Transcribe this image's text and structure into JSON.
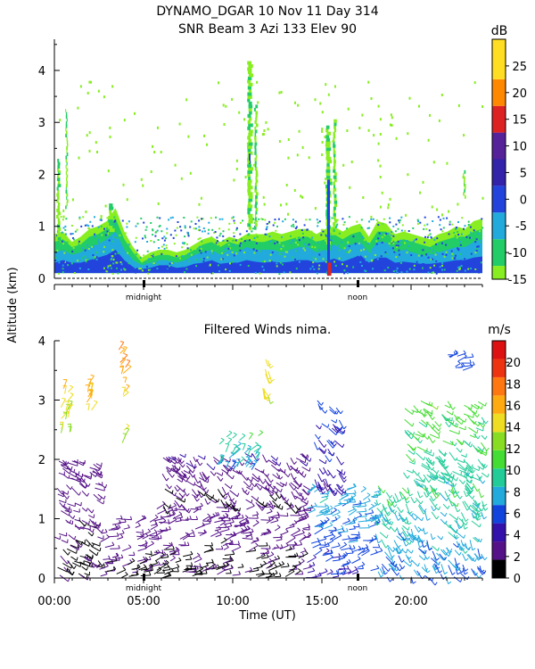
{
  "chart_data": [
    {
      "type": "heatmap",
      "title": "DYNAMO_DGAR   10 Nov 11  Day 314",
      "subtitle": "SNR Beam 3 Azi 133 Elev 90",
      "ylabel": "Altitude (km)",
      "ylim": [
        0,
        4.6
      ],
      "yticks": [
        "0",
        "1",
        "2",
        "3",
        "4"
      ],
      "xlim": [
        0,
        24
      ],
      "markers": [
        {
          "x": 5,
          "label": "midnight"
        },
        {
          "x": 17,
          "label": "noon"
        }
      ],
      "colorbar": {
        "unit": "dB",
        "ticks": [
          "-15",
          "-10",
          "-5",
          "0",
          "5",
          "10",
          "15",
          "20",
          "25"
        ],
        "ranges": [
          {
            "min": -15,
            "max": -12.5,
            "color": "#88ee22"
          },
          {
            "min": -12.5,
            "max": -7.5,
            "color": "#22cc66"
          },
          {
            "min": -7.5,
            "max": -2.5,
            "color": "#22aadd"
          },
          {
            "min": -2.5,
            "max": 2.5,
            "color": "#2244dd"
          },
          {
            "min": 2.5,
            "max": 7.5,
            "color": "#3322aa"
          },
          {
            "min": 7.5,
            "max": 12.5,
            "color": "#552299"
          },
          {
            "min": 12.5,
            "max": 17.5,
            "color": "#dd2222"
          },
          {
            "min": 17.5,
            "max": 22.5,
            "color": "#ff8800"
          },
          {
            "min": 22.5,
            "max": 30,
            "color": "#ffdd22"
          }
        ]
      },
      "layers": [
        {
          "name": "-15",
          "top": [
            0.85,
            0.9,
            0.7,
            0.8,
            0.95,
            1.0,
            1.1,
            1.35,
            0.9,
            0.6,
            0.4,
            0.5,
            0.55,
            0.55,
            0.5,
            0.55,
            0.65,
            0.75,
            0.8,
            0.7,
            0.8,
            0.75,
            0.85,
            0.85,
            0.85,
            0.9,
            0.85,
            0.9,
            0.95,
            0.95,
            0.85,
            0.95,
            1.0,
            0.9,
            1.0,
            1.05,
            0.8,
            1.1,
            1.05,
            0.85,
            0.9,
            0.85,
            0.8,
            0.75,
            0.85,
            0.9,
            1.0,
            0.95,
            1.1,
            1.15
          ]
        },
        {
          "name": "-10",
          "top": [
            0.7,
            0.75,
            0.6,
            0.65,
            0.8,
            0.85,
            0.95,
            1.15,
            0.75,
            0.5,
            0.3,
            0.4,
            0.45,
            0.45,
            0.4,
            0.45,
            0.55,
            0.65,
            0.7,
            0.6,
            0.7,
            0.65,
            0.75,
            0.7,
            0.7,
            0.75,
            0.7,
            0.75,
            0.8,
            0.8,
            0.7,
            0.75,
            0.85,
            0.75,
            0.85,
            0.9,
            0.65,
            0.9,
            0.9,
            0.7,
            0.75,
            0.7,
            0.65,
            0.6,
            0.7,
            0.75,
            0.8,
            0.8,
            0.9,
            0.95
          ]
        },
        {
          "name": "-5",
          "top": [
            0.5,
            0.55,
            0.45,
            0.5,
            0.6,
            0.65,
            0.75,
            0.9,
            0.55,
            0.35,
            0.25,
            0.3,
            0.35,
            0.35,
            0.3,
            0.35,
            0.45,
            0.5,
            0.55,
            0.45,
            0.55,
            0.5,
            0.6,
            0.55,
            0.55,
            0.55,
            0.5,
            0.55,
            0.6,
            0.6,
            0.5,
            0.55,
            0.65,
            0.55,
            0.65,
            0.7,
            0.5,
            0.7,
            0.7,
            0.5,
            0.55,
            0.5,
            0.45,
            0.45,
            0.5,
            0.55,
            0.6,
            0.6,
            0.7,
            0.75
          ]
        },
        {
          "name": "0",
          "top": [
            0.3,
            0.35,
            0.3,
            0.3,
            0.35,
            0.4,
            0.45,
            0.55,
            0.35,
            0.22,
            0.18,
            0.2,
            0.25,
            0.25,
            0.2,
            0.22,
            0.28,
            0.3,
            0.35,
            0.28,
            0.3,
            0.3,
            0.35,
            0.32,
            0.3,
            0.32,
            0.3,
            0.32,
            0.35,
            0.35,
            0.3,
            0.32,
            0.38,
            0.32,
            0.38,
            0.45,
            0.3,
            0.4,
            0.4,
            0.3,
            0.32,
            0.3,
            0.28,
            0.28,
            0.3,
            0.32,
            0.35,
            0.35,
            0.4,
            0.42
          ]
        }
      ],
      "columns": [
        {
          "x0": 0.1,
          "x1": 0.3,
          "y0": 0.8,
          "y1": 2.35
        },
        {
          "x0": 0.6,
          "x1": 0.7,
          "y0": 1.4,
          "y1": 3.3
        },
        {
          "x0": 3.0,
          "x1": 3.3,
          "y0": 0.9,
          "y1": 1.5
        },
        {
          "x0": 10.8,
          "x1": 11.1,
          "y0": 1.0,
          "y1": 4.2
        },
        {
          "x0": 11.2,
          "x1": 11.35,
          "y0": 1.0,
          "y1": 3.4
        },
        {
          "x0": 15.2,
          "x1": 15.5,
          "y0": 0.6,
          "y1": 3.0
        },
        {
          "x0": 15.6,
          "x1": 15.8,
          "y0": 0.9,
          "y1": 3.1
        },
        {
          "x0": 22.9,
          "x1": 23.0,
          "y0": 1.6,
          "y1": 2.1
        }
      ],
      "strong_columns": [
        {
          "x0": 15.3,
          "x1": 15.45,
          "y0": 0.05,
          "y1": 1.9
        },
        {
          "x0": 10.9,
          "x1": 11.0,
          "y0": 2.2,
          "y1": 2.4
        }
      ]
    },
    {
      "type": "scatter",
      "title": "Filtered Winds nima.",
      "xlabel": "Time (UT)",
      "ylabel": "Altitude (km)",
      "xlim": [
        0,
        24
      ],
      "ylim": [
        0,
        4.0
      ],
      "xticks": [
        {
          "v": 0,
          "label": "00:00"
        },
        {
          "v": 5,
          "label": "05:00"
        },
        {
          "v": 10,
          "label": "10:00"
        },
        {
          "v": 15,
          "label": "15:00"
        },
        {
          "v": 20,
          "label": "20:00"
        }
      ],
      "yticks": [
        "0",
        "1",
        "2",
        "3",
        "4"
      ],
      "markers": [
        {
          "x": 5,
          "label": "midnight"
        },
        {
          "x": 17,
          "label": "noon"
        }
      ],
      "colorbar": {
        "unit": "m/s",
        "ticks": [
          "0",
          "2",
          "4",
          "6",
          "8",
          "10",
          "12",
          "14",
          "16",
          "18",
          "20"
        ],
        "colors": [
          "#000000",
          "#551188",
          "#3311aa",
          "#1144dd",
          "#22aadd",
          "#22cc99",
          "#44dd33",
          "#88dd22",
          "#eedd22",
          "#ffaa11",
          "#ff7711",
          "#ee3311",
          "#dd1111"
        ]
      },
      "regions": [
        {
          "x0": 0.0,
          "x1": 2.5,
          "y0": 0.0,
          "y1": 2.0,
          "v0": 1,
          "v1": 3,
          "dir": -0.6
        },
        {
          "x0": 0.2,
          "x1": 1.0,
          "y0": 2.4,
          "y1": 3.3,
          "v0": 11,
          "v1": 17,
          "dir": 1.1
        },
        {
          "x0": 1.8,
          "x1": 2.1,
          "y0": 2.8,
          "y1": 3.3,
          "v0": 13,
          "v1": 18,
          "dir": 1.2
        },
        {
          "x0": 3.6,
          "x1": 4.0,
          "y0": 2.2,
          "y1": 3.9,
          "v0": 12,
          "v1": 19,
          "dir": 1.0
        },
        {
          "x0": 2.5,
          "x1": 5.5,
          "y0": 0.0,
          "y1": 1.0,
          "v0": 1,
          "v1": 3,
          "dir": 0.2
        },
        {
          "x0": 5.5,
          "x1": 14.0,
          "y0": 0.0,
          "y1": 1.2,
          "v0": 1,
          "v1": 3,
          "dir": 0.25
        },
        {
          "x0": 6.0,
          "x1": 14.0,
          "y0": 1.2,
          "y1": 2.1,
          "v0": 1,
          "v1": 4,
          "dir": -0.8
        },
        {
          "x0": 9.0,
          "x1": 11.5,
          "y0": 1.8,
          "y1": 2.4,
          "v0": 6,
          "v1": 11,
          "dir": 0.9
        },
        {
          "x0": 11.6,
          "x1": 12.0,
          "y0": 3.0,
          "y1": 3.85,
          "v0": 12,
          "v1": 16,
          "dir": -1.2
        },
        {
          "x0": 14.0,
          "x1": 18.0,
          "y0": 0.0,
          "y1": 1.5,
          "v0": 4,
          "v1": 9,
          "dir": 0.3
        },
        {
          "x0": 14.5,
          "x1": 16.0,
          "y0": 1.5,
          "y1": 3.0,
          "v0": 3,
          "v1": 7,
          "dir": -0.9
        },
        {
          "x0": 18.0,
          "x1": 24.0,
          "y0": 0.0,
          "y1": 1.6,
          "v0": 5,
          "v1": 11,
          "dir": -1.0
        },
        {
          "x0": 19.5,
          "x1": 24.0,
          "y0": 1.6,
          "y1": 3.0,
          "v0": 8,
          "v1": 12,
          "dir": -0.7
        },
        {
          "x0": 22.0,
          "x1": 23.2,
          "y0": 3.5,
          "y1": 3.8,
          "v0": 5,
          "v1": 7,
          "dir": 0.3
        }
      ]
    }
  ]
}
